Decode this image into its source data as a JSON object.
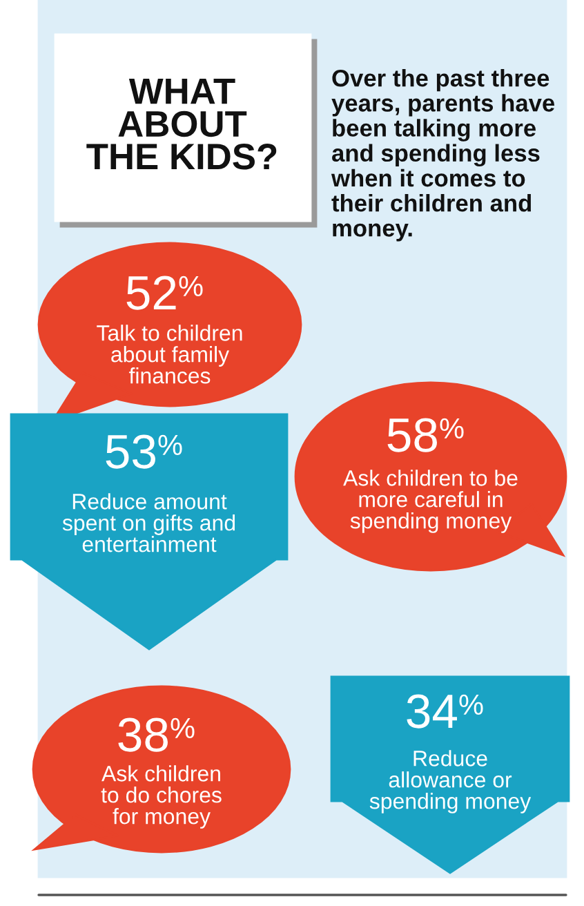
{
  "chart_data": {
    "type": "other",
    "title": "WHAT\nABOUT\nTHE KIDS?",
    "subtitle": "Over the past three years, parents have been talking more and spending less when it comes to their children and money.",
    "categories": [
      "Talk to children\nabout family\nfinances",
      "Reduce amount\nspent on gifts and\nentertainment",
      "Ask children to be\nmore careful in\nspending money",
      "Ask children\nto do chores\nfor money",
      "Reduce\nallowance or\nspending money"
    ],
    "values": [
      52,
      53,
      58,
      38,
      34
    ],
    "value_labels": [
      "52%",
      "53%",
      "58%",
      "38%",
      "34%"
    ],
    "colors": [
      "#e8432a",
      "#1aa3c4",
      "#e8432a",
      "#e8432a",
      "#1aa3c4"
    ]
  }
}
